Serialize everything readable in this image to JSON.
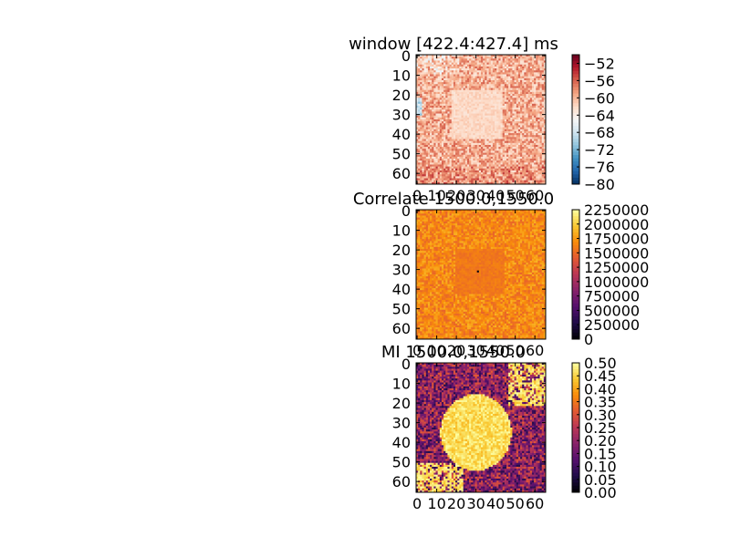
{
  "chart_data": [
    {
      "type": "heatmap",
      "title": "window [422.4:427.4] ms",
      "rows": 66,
      "cols": 66,
      "xlim": [
        0,
        65
      ],
      "ylim": [
        0,
        65
      ],
      "xticks": [
        "0",
        "10",
        "20",
        "30",
        "40",
        "50",
        "60"
      ],
      "yticks": [
        "0",
        "10",
        "20",
        "30",
        "40",
        "50",
        "60"
      ],
      "xtick_values": [
        0,
        10,
        20,
        30,
        40,
        50,
        60
      ],
      "ytick_values": [
        0,
        10,
        20,
        30,
        40,
        50,
        60
      ],
      "colormap": "RdBu_r",
      "colorbar": {
        "range": [
          -80,
          -50
        ],
        "ticks": [
          "−52",
          "−56",
          "−60",
          "−64",
          "−68",
          "−72",
          "−76",
          "−80"
        ],
        "tick_values": [
          -52,
          -56,
          -60,
          -64,
          -68,
          -72,
          -76,
          -80
        ]
      },
      "xticks_visible": false
    },
    {
      "type": "heatmap",
      "title": "Correlate 1500.0,1550.0",
      "rows": 66,
      "cols": 66,
      "xlim": [
        0,
        65
      ],
      "ylim": [
        0,
        65
      ],
      "xticks": [
        "0",
        "10",
        "20",
        "30",
        "40",
        "50",
        "60"
      ],
      "yticks": [
        "0",
        "10",
        "20",
        "30",
        "40",
        "50",
        "60"
      ],
      "xtick_values": [
        0,
        10,
        20,
        30,
        40,
        50,
        60
      ],
      "ytick_values": [
        0,
        10,
        20,
        30,
        40,
        50,
        60
      ],
      "colormap": "inferno",
      "colorbar": {
        "range": [
          0,
          2250000
        ],
        "ticks": [
          "2250000",
          "2000000",
          "1750000",
          "1500000",
          "1250000",
          "1000000",
          "750000",
          "500000",
          "250000",
          "0"
        ],
        "tick_values": [
          2250000,
          2000000,
          1750000,
          1500000,
          1250000,
          1000000,
          750000,
          500000,
          250000,
          0
        ]
      },
      "xticks_visible": false
    },
    {
      "type": "heatmap",
      "title": "MI 1500.0,1550.0",
      "rows": 66,
      "cols": 66,
      "xlim": [
        0,
        65
      ],
      "ylim": [
        0,
        65
      ],
      "xticks": [
        "0",
        "10",
        "20",
        "30",
        "40",
        "50",
        "60"
      ],
      "yticks": [
        "0",
        "10",
        "20",
        "30",
        "40",
        "50",
        "60"
      ],
      "xtick_values": [
        0,
        10,
        20,
        30,
        40,
        50,
        60
      ],
      "ytick_values": [
        0,
        10,
        20,
        30,
        40,
        50,
        60
      ],
      "colormap": "inferno",
      "colorbar": {
        "range": [
          0,
          0.5
        ],
        "ticks": [
          "0.50",
          "0.45",
          "0.40",
          "0.35",
          "0.30",
          "0.25",
          "0.20",
          "0.15",
          "0.10",
          "0.05",
          "0.00"
        ],
        "tick_values": [
          0.5,
          0.45,
          0.4,
          0.35,
          0.3,
          0.25,
          0.2,
          0.15,
          0.1,
          0.05,
          0.0
        ]
      },
      "xticks_visible": true
    }
  ]
}
